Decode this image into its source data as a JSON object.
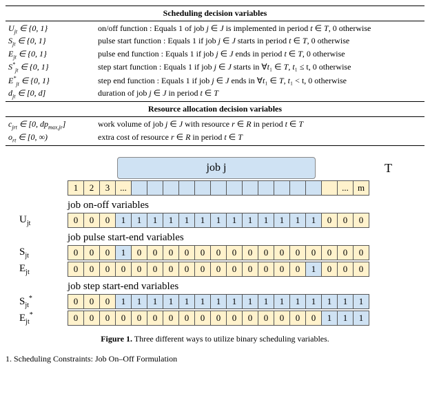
{
  "table": {
    "header1": "Scheduling decision variables",
    "rows1": [
      {
        "symbol_html": "U<sub>jt</sub> ∈ {0, 1}",
        "desc": "on/off function : Equals 1 of job j ∈ J is implemented in period t ∈ T, 0 otherwise"
      },
      {
        "symbol_html": "S<sub>jt</sub> ∈ {0, 1}",
        "desc": "pulse start function : Equals 1 if job j ∈ J starts in period t ∈ T, 0 otherwise"
      },
      {
        "symbol_html": "E<sub>jt</sub> ∈ {0, 1}",
        "desc": "pulse end function : Equals 1 if job j ∈ J ends in period t ∈ T, 0 otherwise"
      },
      {
        "symbol_html": "S<sup>*</sup><sub>jt</sub> ∈ {0, 1}",
        "desc": "step start function : Equals 1 if job j ∈ J starts in ∀t₁ ∈ T, t₁ ≤ t, 0 otherwise"
      },
      {
        "symbol_html": "E<sup>*</sup><sub>jt</sub> ∈ {0, 1}",
        "desc": "step end function : Equals 1 if job j ∈ J ends in ∀t₁ ∈ T, t₁ < t, 0 otherwise"
      },
      {
        "symbol_html": "d<sub>jt</sub> ∈ [0, d]",
        "desc": "duration of job j ∈ J in period t ∈ T"
      }
    ],
    "header2": "Resource allocation decision variables",
    "rows2": [
      {
        "symbol_html": "c<sub>jrt</sub> ∈ [0, dp<sub>max,jr</sub>]",
        "desc": "work volume of job j ∈ J with resource r ∈ R in period t ∈ T"
      },
      {
        "symbol_html": "o<sub>rt</sub> ∈ [0, ∞)",
        "desc": "extra cost of resource r ∈ R in period t ∈ T"
      }
    ]
  },
  "figure": {
    "job_label": "job j",
    "T_label": "T",
    "header_cells": [
      "1",
      "2",
      "3",
      "...",
      "",
      "",
      "",
      "",
      "",
      "",
      "",
      "",
      "",
      "",
      "",
      "",
      "",
      "...",
      "m"
    ],
    "header_colors": [
      "c-cream",
      "c-cream",
      "c-cream",
      "c-cream",
      "c-blue",
      "c-blue",
      "c-blue",
      "c-blue",
      "c-blue",
      "c-blue",
      "c-blue",
      "c-blue",
      "c-blue",
      "c-blue",
      "c-blue",
      "c-blue",
      "c-cream",
      "c-cream",
      "c-cream"
    ],
    "groups": [
      {
        "label": "job on-off variables",
        "rows": [
          {
            "var_html": "U<sub>jt</sub>",
            "values": [
              "0",
              "0",
              "0",
              "1",
              "1",
              "1",
              "1",
              "1",
              "1",
              "1",
              "1",
              "1",
              "1",
              "1",
              "1",
              "1",
              "0",
              "0",
              "0"
            ],
            "colors": [
              "c-cream",
              "c-cream",
              "c-cream",
              "c-blue",
              "c-blue",
              "c-blue",
              "c-blue",
              "c-blue",
              "c-blue",
              "c-blue",
              "c-blue",
              "c-blue",
              "c-blue",
              "c-blue",
              "c-blue",
              "c-blue",
              "c-cream",
              "c-cream",
              "c-cream"
            ]
          }
        ]
      },
      {
        "label": "job pulse start-end variables",
        "rows": [
          {
            "var_html": "S<sub>jt</sub>",
            "values": [
              "0",
              "0",
              "0",
              "1",
              "0",
              "0",
              "0",
              "0",
              "0",
              "0",
              "0",
              "0",
              "0",
              "0",
              "0",
              "0",
              "0",
              "0",
              "0"
            ],
            "colors": [
              "c-cream",
              "c-cream",
              "c-cream",
              "c-blue",
              "c-cream",
              "c-cream",
              "c-cream",
              "c-cream",
              "c-cream",
              "c-cream",
              "c-cream",
              "c-cream",
              "c-cream",
              "c-cream",
              "c-cream",
              "c-cream",
              "c-cream",
              "c-cream",
              "c-cream"
            ]
          },
          {
            "var_html": "E<sub>jt</sub>",
            "values": [
              "0",
              "0",
              "0",
              "0",
              "0",
              "0",
              "0",
              "0",
              "0",
              "0",
              "0",
              "0",
              "0",
              "0",
              "0",
              "1",
              "0",
              "0",
              "0"
            ],
            "colors": [
              "c-cream",
              "c-cream",
              "c-cream",
              "c-cream",
              "c-cream",
              "c-cream",
              "c-cream",
              "c-cream",
              "c-cream",
              "c-cream",
              "c-cream",
              "c-cream",
              "c-cream",
              "c-cream",
              "c-cream",
              "c-blue",
              "c-cream",
              "c-cream",
              "c-cream"
            ]
          }
        ]
      },
      {
        "label": "job step start-end variables",
        "rows": [
          {
            "var_html": "S<sub>jt</sub><sup>*</sup>",
            "values": [
              "0",
              "0",
              "0",
              "1",
              "1",
              "1",
              "1",
              "1",
              "1",
              "1",
              "1",
              "1",
              "1",
              "1",
              "1",
              "1",
              "1",
              "1",
              "1"
            ],
            "colors": [
              "c-cream",
              "c-cream",
              "c-cream",
              "c-blue",
              "c-blue",
              "c-blue",
              "c-blue",
              "c-blue",
              "c-blue",
              "c-blue",
              "c-blue",
              "c-blue",
              "c-blue",
              "c-blue",
              "c-blue",
              "c-blue",
              "c-blue",
              "c-blue",
              "c-blue"
            ]
          },
          {
            "var_html": "E<sub>jt</sub><sup>*</sup>",
            "values": [
              "0",
              "0",
              "0",
              "0",
              "0",
              "0",
              "0",
              "0",
              "0",
              "0",
              "0",
              "0",
              "0",
              "0",
              "0",
              "0",
              "1",
              "1",
              "1"
            ],
            "colors": [
              "c-cream",
              "c-cream",
              "c-cream",
              "c-cream",
              "c-cream",
              "c-cream",
              "c-cream",
              "c-cream",
              "c-cream",
              "c-cream",
              "c-cream",
              "c-cream",
              "c-cream",
              "c-cream",
              "c-cream",
              "c-cream",
              "c-blue",
              "c-blue",
              "c-blue"
            ]
          }
        ]
      }
    ],
    "caption_bold": "Figure 1.",
    "caption_rest": " Three different ways to utilize binary scheduling variables."
  },
  "footer": "1. Scheduling Constraints: Job On–Off Formulation"
}
